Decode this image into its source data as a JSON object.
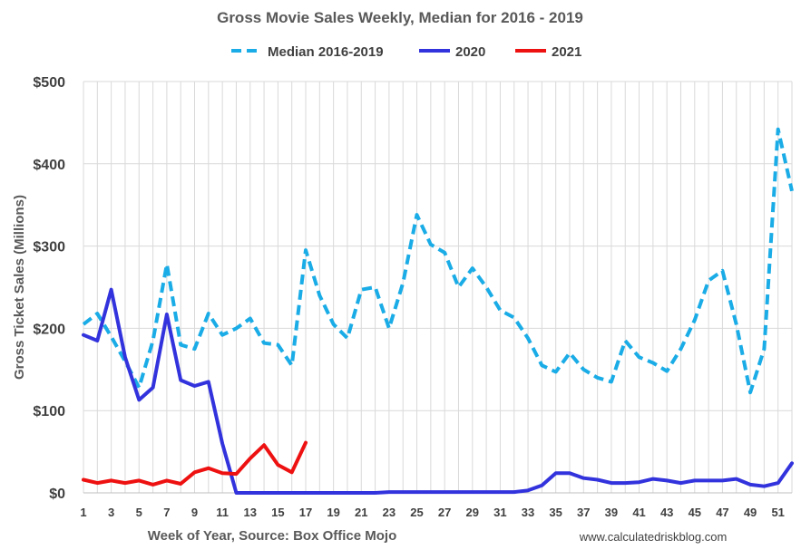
{
  "chart_data": {
    "type": "line",
    "title": "Gross Movie Sales Weekly, Median for 2016 - 2019",
    "xlabel": "Week of Year, Source: Box Office Mojo",
    "ylabel": "Gross Ticket Sales (Millions)",
    "source_note": "www.calculatedriskblog.com",
    "xlim": [
      1,
      52
    ],
    "ylim": [
      0,
      500
    ],
    "x_ticks": [
      1,
      3,
      5,
      7,
      9,
      11,
      13,
      15,
      17,
      19,
      21,
      23,
      25,
      27,
      29,
      31,
      33,
      35,
      37,
      39,
      41,
      43,
      45,
      47,
      49,
      51
    ],
    "y_ticks": [
      0,
      100,
      200,
      300,
      400,
      500
    ],
    "y_tick_labels": [
      "$0",
      "$100",
      "$200",
      "$300",
      "$400",
      "$500"
    ],
    "grid": true,
    "legend_position": "top",
    "series": [
      {
        "name": "Median 2016-2019",
        "color": "#1AACE6",
        "dashed": true,
        "x": [
          1,
          2,
          3,
          4,
          5,
          6,
          7,
          8,
          9,
          10,
          11,
          12,
          13,
          14,
          15,
          16,
          17,
          18,
          19,
          20,
          21,
          22,
          23,
          24,
          25,
          26,
          27,
          28,
          29,
          30,
          31,
          32,
          33,
          34,
          35,
          36,
          37,
          38,
          39,
          40,
          41,
          42,
          43,
          44,
          45,
          46,
          47,
          48,
          49,
          50,
          51,
          52
        ],
        "y": [
          205,
          218,
          190,
          160,
          128,
          185,
          278,
          180,
          175,
          218,
          192,
          200,
          212,
          182,
          180,
          155,
          295,
          240,
          205,
          188,
          247,
          250,
          200,
          255,
          338,
          302,
          292,
          250,
          273,
          250,
          222,
          213,
          188,
          155,
          147,
          170,
          150,
          140,
          135,
          185,
          165,
          158,
          148,
          175,
          210,
          258,
          270,
          205,
          122,
          175,
          442,
          367
        ]
      },
      {
        "name": "2020",
        "color": "#3333DD",
        "dashed": false,
        "x": [
          1,
          2,
          3,
          4,
          5,
          6,
          7,
          8,
          9,
          10,
          11,
          12,
          13,
          14,
          15,
          16,
          17,
          18,
          19,
          20,
          21,
          22,
          23,
          24,
          25,
          26,
          27,
          28,
          29,
          30,
          31,
          32,
          33,
          34,
          35,
          36,
          37,
          38,
          39,
          40,
          41,
          42,
          43,
          44,
          45,
          46,
          47,
          48,
          49,
          50,
          51,
          52
        ],
        "y": [
          192,
          185,
          247,
          165,
          113,
          128,
          217,
          137,
          130,
          135,
          60,
          0,
          0,
          0,
          0,
          0,
          0,
          0,
          0,
          0,
          0,
          0,
          1,
          1,
          1,
          1,
          1,
          1,
          1,
          1,
          1,
          1,
          3,
          9,
          24,
          24,
          18,
          16,
          12,
          12,
          13,
          17,
          15,
          12,
          15,
          15,
          15,
          17,
          10,
          8,
          12,
          36
        ]
      },
      {
        "name": "2021",
        "color": "#EE1111",
        "dashed": false,
        "x": [
          1,
          2,
          3,
          4,
          5,
          6,
          7,
          8,
          9,
          10,
          11,
          12,
          13,
          14,
          15,
          16,
          17
        ],
        "y": [
          16,
          12,
          15,
          12,
          15,
          10,
          15,
          11,
          25,
          30,
          24,
          23,
          42,
          58,
          34,
          25,
          61
        ]
      }
    ]
  }
}
